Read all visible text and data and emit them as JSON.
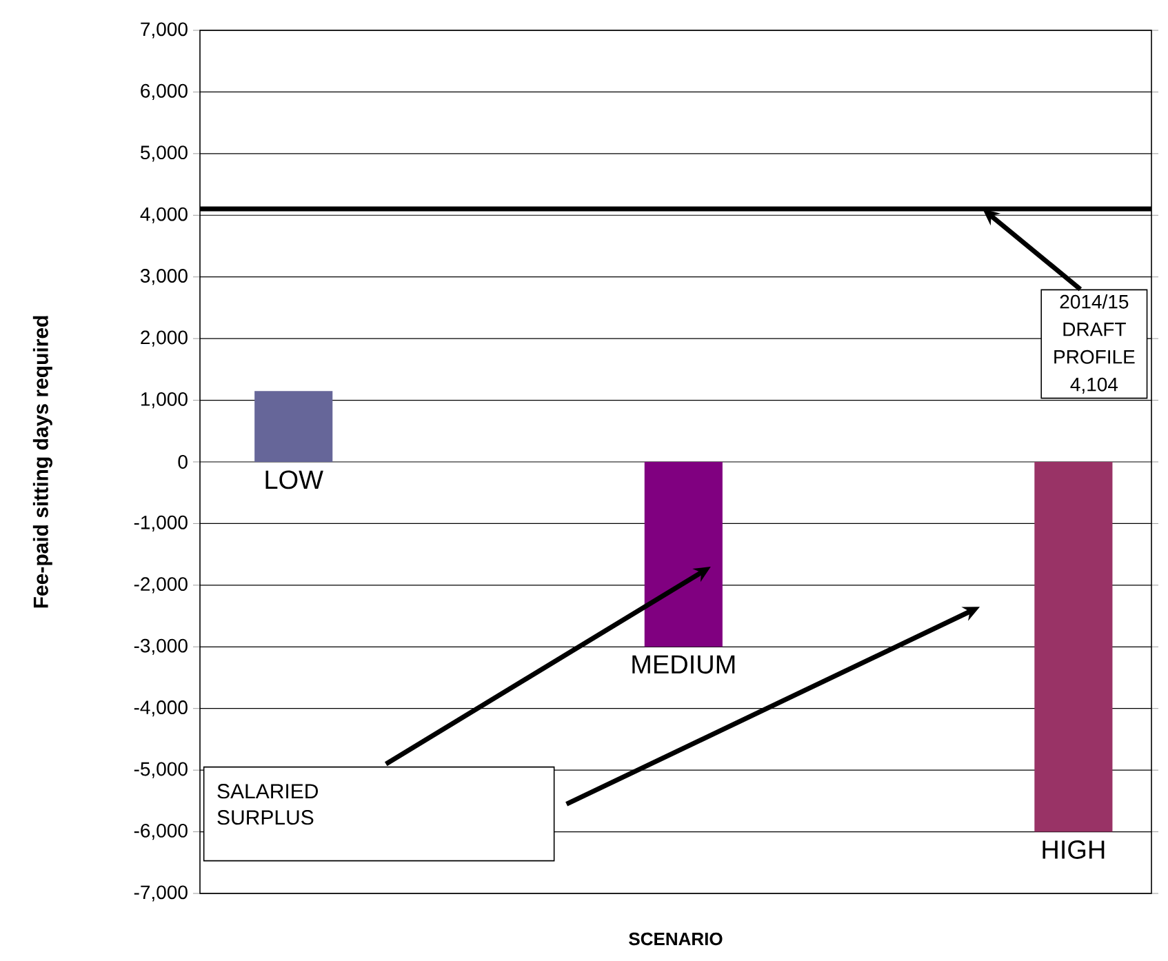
{
  "chart_data": {
    "type": "bar",
    "xlabel": "SCENARIO",
    "ylabel": "Fee-paid sitting days required",
    "categories": [
      "LOW",
      "MEDIUM",
      "HIGH"
    ],
    "values": [
      1150,
      -3000,
      -6000
    ],
    "colors": [
      "#666699",
      "#800080",
      "#993366"
    ],
    "ylim": [
      -7000,
      7000
    ],
    "yticks": [
      {
        "value": -7000,
        "label": "-7,000"
      },
      {
        "value": -6000,
        "label": "-6,000"
      },
      {
        "value": -5000,
        "label": "-5,000"
      },
      {
        "value": -4000,
        "label": "-4,000"
      },
      {
        "value": -3000,
        "label": "-3,000"
      },
      {
        "value": -2000,
        "label": "-2,000"
      },
      {
        "value": -1000,
        "label": "-1,000"
      },
      0,
      {
        "value": 1000,
        "label": "1,000"
      },
      {
        "value": 2000,
        "label": "2,000"
      },
      {
        "value": 3000,
        "label": "3,000"
      },
      {
        "value": 4000,
        "label": "4,000"
      },
      {
        "value": 5000,
        "label": "5,000"
      },
      {
        "value": 6000,
        "label": "6,000"
      },
      {
        "value": 7000,
        "label": "7,000"
      }
    ],
    "grid": "y",
    "ref_lines": [
      {
        "axis": "y",
        "value": 4104,
        "label": "2014/15 DRAFT PROFILE 4,104",
        "color": "#000000"
      }
    ],
    "annotations": [
      "SALARIED SURPLUS"
    ]
  }
}
